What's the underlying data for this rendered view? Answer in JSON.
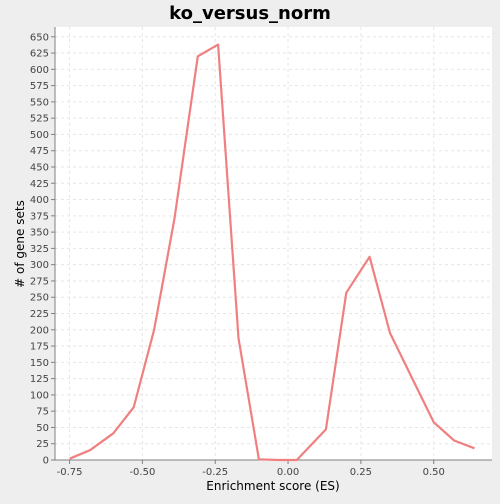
{
  "chart_data": {
    "type": "line",
    "title": "ko_versus_norm",
    "xlabel": "Enrichment score (ES)",
    "ylabel": "# of gene sets",
    "xlim": [
      -0.8,
      0.7
    ],
    "ylim": [
      0,
      665
    ],
    "x_ticks": [
      -0.75,
      -0.5,
      -0.25,
      0.0,
      0.25,
      0.5
    ],
    "x_tick_labels": [
      "-0.75",
      "-0.50",
      "-0.25",
      "0.00",
      "0.25",
      "0.50"
    ],
    "y_ticks": [
      0,
      25,
      50,
      75,
      100,
      125,
      150,
      175,
      200,
      225,
      250,
      275,
      300,
      325,
      350,
      375,
      400,
      425,
      450,
      475,
      500,
      525,
      550,
      575,
      600,
      625,
      650
    ],
    "grid": true,
    "legend": "none",
    "colors": {
      "line": "#f08080",
      "plot_bg": "#ffffff",
      "page_bg": "#eeeeee",
      "grid": "#e6e6e6"
    },
    "series": [
      {
        "x": [
          -0.75,
          -0.68,
          -0.6,
          -0.53,
          -0.46,
          -0.39,
          -0.31,
          -0.24,
          -0.17,
          -0.1,
          -0.03,
          0.03,
          0.13,
          0.2,
          0.28,
          0.35,
          0.43,
          0.5,
          0.57,
          0.64
        ],
        "y": [
          2,
          15,
          41,
          81,
          200,
          370,
          620,
          638,
          187,
          1,
          0,
          0,
          47,
          257,
          312,
          195,
          122,
          58,
          30,
          18
        ]
      }
    ]
  }
}
